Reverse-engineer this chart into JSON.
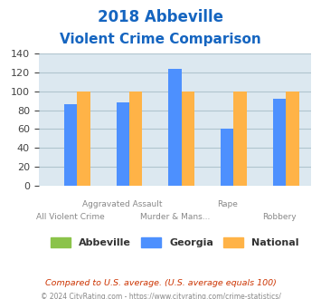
{
  "title_line1": "2018 Abbeville",
  "title_line2": "Violent Crime Comparison",
  "categories": [
    "All Violent Crime",
    "Aggravated Assault",
    "Murder & Mans...",
    "Rape",
    "Robbery"
  ],
  "abbeville": [
    0,
    0,
    0,
    0,
    0
  ],
  "georgia": [
    86,
    88,
    124,
    60,
    92
  ],
  "national": [
    100,
    100,
    100,
    100,
    100
  ],
  "abbeville_color": "#8bc34a",
  "georgia_color": "#4d90fe",
  "national_color": "#ffb347",
  "bg_color": "#dce8f0",
  "ylim": [
    0,
    140
  ],
  "yticks": [
    0,
    20,
    40,
    60,
    80,
    100,
    120,
    140
  ],
  "legend_labels": [
    "Abbeville",
    "Georgia",
    "National"
  ],
  "footnote1": "Compared to U.S. average. (U.S. average equals 100)",
  "footnote2": "© 2024 CityRating.com - https://www.cityrating.com/crime-statistics/",
  "title_color": "#1565c0",
  "footnote1_color": "#cc3300",
  "footnote2_color": "#888888",
  "grid_color": "#b0c4ce",
  "label_color": "#888888"
}
